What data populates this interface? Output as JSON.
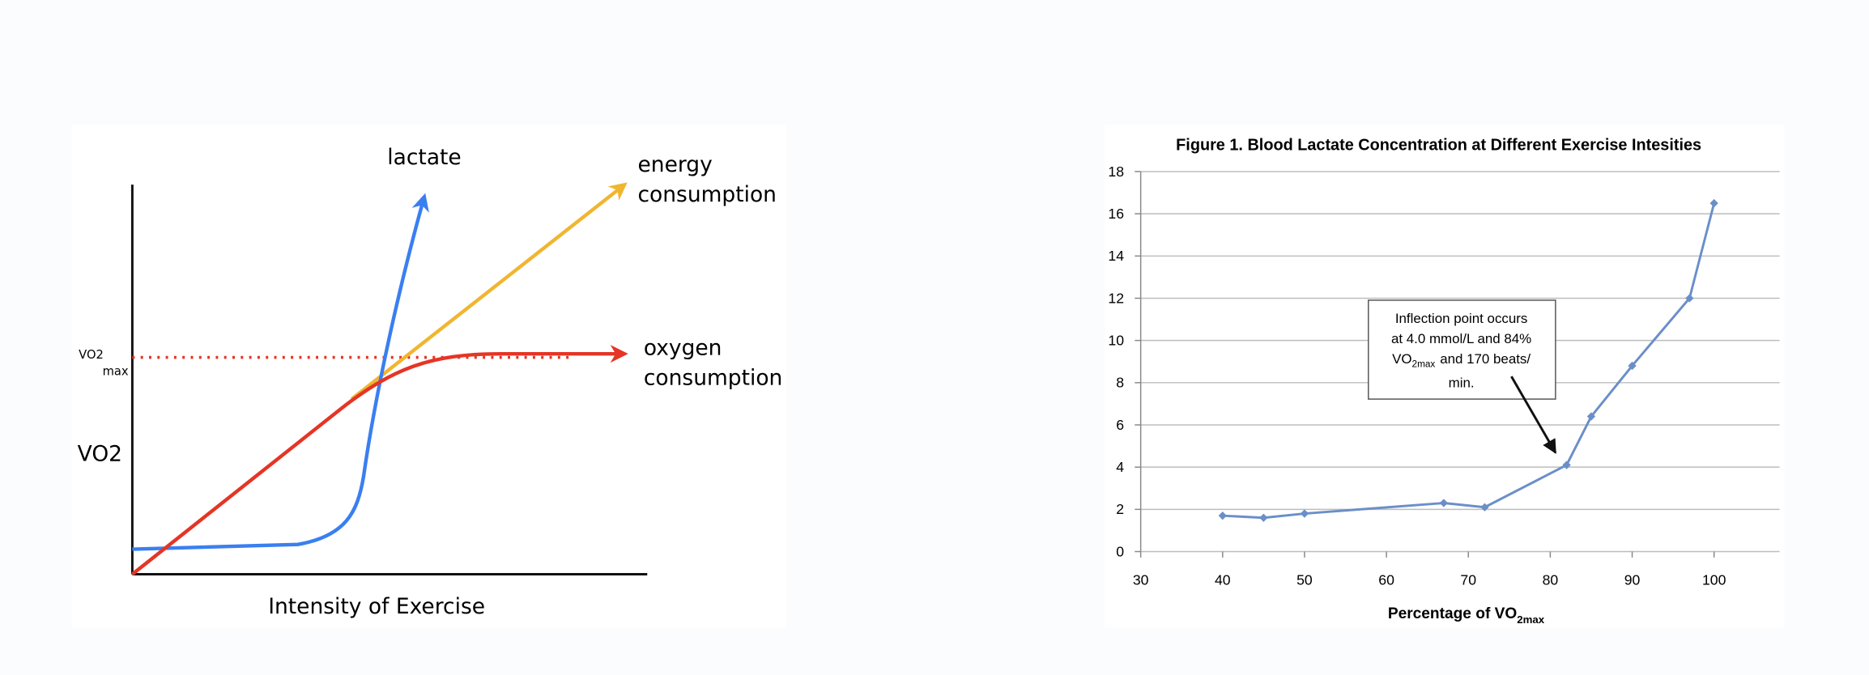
{
  "diagram": {
    "lactate_label": "lactate",
    "energy_label": [
      "energy",
      "consumption"
    ],
    "oxygen_label": [
      "oxygen",
      "consumption"
    ],
    "vo2max_label": "VO2",
    "vo2max_subscript": "max",
    "y_axis_label": "VO2",
    "x_axis_label": "Intensity of Exercise"
  },
  "chart_data": {
    "type": "line",
    "title": "Figure 1. Blood Lactate Concentration at Different Exercise Intesities",
    "x_label": "Percentage of VO",
    "x_label_subscript": "2max",
    "x": [
      40,
      45,
      50,
      67,
      72,
      82,
      85,
      90,
      97,
      100
    ],
    "values": [
      1.7,
      1.6,
      1.8,
      2.3,
      2.1,
      4.1,
      6.4,
      8.8,
      12,
      16.5
    ],
    "color": "#6a8fc8",
    "xlim": [
      30,
      108
    ],
    "xticks": [
      30,
      40,
      50,
      60,
      70,
      80,
      90,
      100
    ],
    "ylim": [
      0,
      18
    ],
    "yticks": [
      0,
      2,
      4,
      6,
      8,
      10,
      12,
      14,
      16,
      18
    ],
    "grid": true,
    "annotation": {
      "line1": "Inflection point occurs",
      "line2": "at 4.0 mmol/L and 84%",
      "line3": "VO",
      "line3_subscript": "2max",
      "line3_rest": "and 170 beats/",
      "line4": "min."
    }
  }
}
